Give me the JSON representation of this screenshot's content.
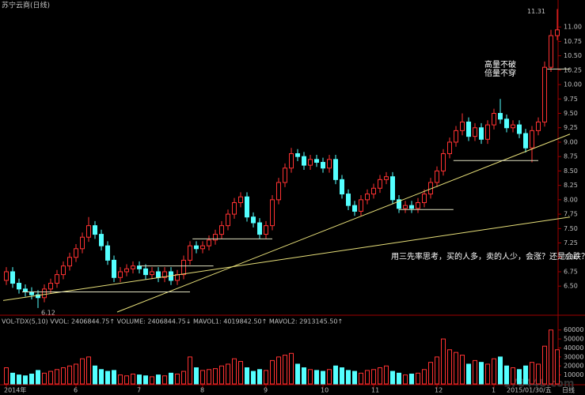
{
  "chart_data": {
    "type": "candlestick",
    "title": "苏宁云商(日线)",
    "up_color": "#ff3232",
    "down_color": "#54ffff",
    "line_color": "#e8e07a",
    "level_color": "#e0e0c0",
    "grid": false,
    "categories": [
      "2014年",
      null,
      null,
      null,
      null,
      null,
      null,
      null,
      null,
      null,
      null,
      "6",
      null,
      null,
      null,
      null,
      null,
      null,
      null,
      null,
      null,
      "7",
      null,
      null,
      null,
      null,
      null,
      null,
      null,
      null,
      null,
      "8",
      null,
      null,
      null,
      null,
      null,
      null,
      null,
      null,
      null,
      "9",
      null,
      null,
      null,
      null,
      null,
      null,
      null,
      null,
      "10",
      null,
      null,
      null,
      null,
      null,
      null,
      null,
      "11",
      null,
      null,
      null,
      null,
      null,
      null,
      null,
      null,
      null,
      "12",
      null,
      null,
      null,
      null,
      null,
      null,
      null,
      null,
      "1",
      null,
      null,
      null,
      null,
      null,
      null,
      null,
      null,
      null,
      null
    ],
    "open": [
      6.6,
      6.75,
      6.55,
      6.45,
      6.4,
      6.35,
      6.3,
      6.45,
      6.55,
      6.7,
      6.85,
      7.0,
      7.15,
      7.35,
      7.55,
      7.4,
      7.2,
      6.95,
      6.65,
      6.75,
      6.8,
      6.85,
      6.8,
      6.7,
      6.75,
      6.65,
      6.75,
      6.6,
      6.7,
      6.95,
      7.2,
      7.15,
      7.2,
      7.3,
      7.4,
      7.55,
      7.75,
      7.95,
      8.05,
      7.7,
      7.6,
      7.4,
      7.55,
      8.0,
      8.3,
      8.55,
      8.8,
      8.75,
      8.6,
      8.7,
      8.65,
      8.55,
      8.7,
      8.35,
      8.1,
      7.9,
      7.8,
      8.0,
      8.1,
      8.2,
      8.35,
      8.4,
      8.0,
      7.85,
      7.9,
      7.85,
      7.95,
      8.1,
      8.3,
      8.5,
      8.8,
      9.0,
      9.2,
      9.35,
      9.1,
      9.25,
      9.05,
      9.3,
      9.5,
      9.4,
      9.25,
      9.3,
      9.15,
      8.9,
      9.2,
      9.35,
      10.3,
      10.85
    ],
    "high": [
      6.83,
      6.83,
      6.63,
      6.53,
      6.48,
      6.43,
      6.53,
      6.63,
      6.78,
      6.93,
      7.08,
      7.23,
      7.43,
      7.7,
      7.63,
      7.48,
      7.28,
      7.03,
      6.83,
      6.88,
      6.93,
      6.93,
      6.88,
      6.83,
      6.83,
      6.83,
      6.83,
      6.78,
      7.03,
      7.28,
      7.28,
      7.28,
      7.38,
      7.48,
      7.63,
      7.83,
      8.03,
      8.13,
      8.13,
      7.78,
      7.68,
      7.63,
      8.08,
      8.38,
      8.63,
      8.9,
      8.88,
      8.83,
      8.78,
      8.78,
      8.73,
      8.78,
      8.78,
      8.43,
      8.18,
      7.98,
      8.08,
      8.18,
      8.28,
      8.43,
      8.48,
      8.48,
      8.08,
      7.98,
      7.98,
      8.03,
      8.18,
      8.38,
      8.58,
      8.88,
      9.08,
      9.28,
      9.5,
      9.43,
      9.33,
      9.33,
      9.38,
      9.58,
      9.75,
      9.48,
      9.38,
      9.38,
      9.23,
      9.28,
      9.43,
      10.4,
      10.95,
      11.31
    ],
    "low": [
      6.52,
      6.47,
      6.37,
      6.32,
      6.27,
      6.12,
      6.22,
      6.37,
      6.47,
      6.62,
      6.77,
      6.92,
      7.07,
      7.27,
      7.32,
      7.12,
      6.87,
      6.57,
      6.57,
      6.67,
      6.72,
      6.72,
      6.62,
      6.62,
      6.57,
      6.57,
      6.52,
      6.52,
      6.62,
      6.87,
      7.07,
      7.07,
      7.12,
      7.22,
      7.32,
      7.47,
      7.67,
      7.87,
      7.62,
      7.52,
      7.32,
      7.32,
      7.47,
      7.92,
      8.22,
      8.47,
      8.67,
      8.52,
      8.52,
      8.57,
      8.47,
      8.47,
      8.27,
      8.02,
      7.82,
      7.72,
      7.72,
      7.92,
      8.02,
      8.12,
      8.27,
      7.92,
      7.77,
      7.77,
      7.77,
      7.77,
      7.87,
      8.02,
      8.22,
      8.42,
      8.72,
      8.92,
      9.12,
      9.02,
      9.02,
      8.97,
      8.97,
      9.22,
      9.32,
      9.17,
      9.17,
      9.07,
      8.82,
      8.65,
      9.12,
      9.27,
      10.22,
      10.77
    ],
    "close": [
      6.75,
      6.55,
      6.45,
      6.4,
      6.35,
      6.3,
      6.45,
      6.55,
      6.7,
      6.85,
      7.0,
      7.15,
      7.35,
      7.55,
      7.4,
      7.2,
      6.95,
      6.65,
      6.75,
      6.8,
      6.85,
      6.8,
      6.7,
      6.75,
      6.65,
      6.75,
      6.6,
      6.7,
      6.95,
      7.2,
      7.15,
      7.2,
      7.3,
      7.4,
      7.55,
      7.75,
      7.95,
      8.05,
      7.7,
      7.6,
      7.4,
      7.55,
      8.0,
      8.3,
      8.55,
      8.8,
      8.75,
      8.6,
      8.7,
      8.65,
      8.55,
      8.7,
      8.35,
      8.1,
      7.9,
      7.8,
      8.0,
      8.1,
      8.2,
      8.35,
      8.4,
      8.0,
      7.85,
      7.9,
      7.85,
      7.95,
      8.1,
      8.3,
      8.5,
      8.8,
      9.0,
      9.2,
      9.35,
      9.1,
      9.25,
      9.05,
      9.3,
      9.5,
      9.4,
      9.25,
      9.3,
      9.15,
      8.9,
      9.2,
      9.35,
      10.3,
      10.85,
      10.95
    ],
    "ylim": [
      6.05,
      11.4
    ],
    "yticks": [
      {
        "value": 6.5,
        "label": "6.50"
      },
      {
        "value": 6.75,
        "label": "6.75"
      },
      {
        "value": 7,
        "label": "7.00"
      },
      {
        "value": 7.25,
        "label": "7.25"
      },
      {
        "value": 7.5,
        "label": "7.50"
      },
      {
        "value": 7.75,
        "label": "7.75"
      },
      {
        "value": 8,
        "label": "8.00"
      },
      {
        "value": 8.25,
        "label": "8.25"
      },
      {
        "value": 8.5,
        "label": "8.50"
      },
      {
        "value": 8.75,
        "label": "8.75"
      },
      {
        "value": 9,
        "label": "9.00"
      },
      {
        "value": 9.25,
        "label": "9.25"
      },
      {
        "value": 9.5,
        "label": "9.50"
      },
      {
        "value": 9.75,
        "label": "9.75"
      },
      {
        "value": 10,
        "label": "10.00"
      },
      {
        "value": 10.25,
        "label": "10.25"
      },
      {
        "value": 10.5,
        "label": "10.50"
      },
      {
        "value": 10.75,
        "label": "10.75"
      },
      {
        "value": 11,
        "label": "11.00"
      }
    ],
    "lines": [
      {
        "kind": "trend",
        "from": [
          17.5,
          6.05
        ],
        "to": [
          89,
          9.14
        ]
      },
      {
        "kind": "trend",
        "from": [
          -0.5,
          6.25
        ],
        "to": [
          89,
          7.7
        ]
      },
      {
        "kind": "level",
        "from": [
          2.5,
          6.4
        ],
        "to": [
          29,
          6.4
        ]
      },
      {
        "kind": "level",
        "from": [
          21,
          6.85
        ],
        "to": [
          32.7,
          6.85
        ]
      },
      {
        "kind": "level",
        "from": [
          29.4,
          7.32
        ],
        "to": [
          42,
          7.32
        ]
      },
      {
        "kind": "level",
        "from": [
          62,
          7.83
        ],
        "to": [
          70.6,
          7.83
        ]
      },
      {
        "kind": "level",
        "from": [
          70.6,
          8.68
        ],
        "to": [
          84,
          8.68
        ]
      },
      {
        "kind": "level",
        "from": [
          85.4,
          10.27
        ],
        "to": [
          89,
          10.27
        ]
      }
    ],
    "annotations": [
      "高量不破",
      "倍量不穿",
      "用三先率思考，买的人多，卖的人少，会涨？还是会跌？"
    ],
    "volume_header": "VOL-TDX(5,10) VVOL: 2406844.75↑  VOLUME: 2406844.75↓  MAVOL1: 4019842.50↑  MAVOL2: 2913145.50↑",
    "volume": [
      18000,
      12000,
      10000,
      9000,
      11000,
      15000,
      12000,
      14000,
      16000,
      18000,
      20000,
      22000,
      28000,
      30000,
      20000,
      16000,
      14000,
      15000,
      10000,
      9000,
      11000,
      10000,
      9000,
      8000,
      10000,
      9000,
      12000,
      11000,
      14000,
      30000,
      18000,
      15000,
      16000,
      17000,
      20000,
      22000,
      28000,
      25000,
      18000,
      14000,
      16000,
      15000,
      26000,
      30000,
      32000,
      34000,
      22000,
      18000,
      16000,
      15000,
      14000,
      16000,
      20000,
      18000,
      15000,
      14000,
      12000,
      15000,
      16000,
      18000,
      20000,
      14000,
      12000,
      10000,
      11000,
      12000,
      16000,
      24000,
      30000,
      50000,
      38000,
      35000,
      32000,
      22000,
      26000,
      24000,
      22000,
      28000,
      30000,
      20000,
      18000,
      16000,
      20000,
      24000,
      22000,
      42000,
      60000,
      38000
    ],
    "vlim": [
      0,
      65000
    ],
    "vticks": [
      10000,
      20000,
      30000,
      40000,
      50000,
      60000
    ],
    "date_label": "2015/01/30/五",
    "period_label": "日线",
    "watermark": "178448.com"
  }
}
